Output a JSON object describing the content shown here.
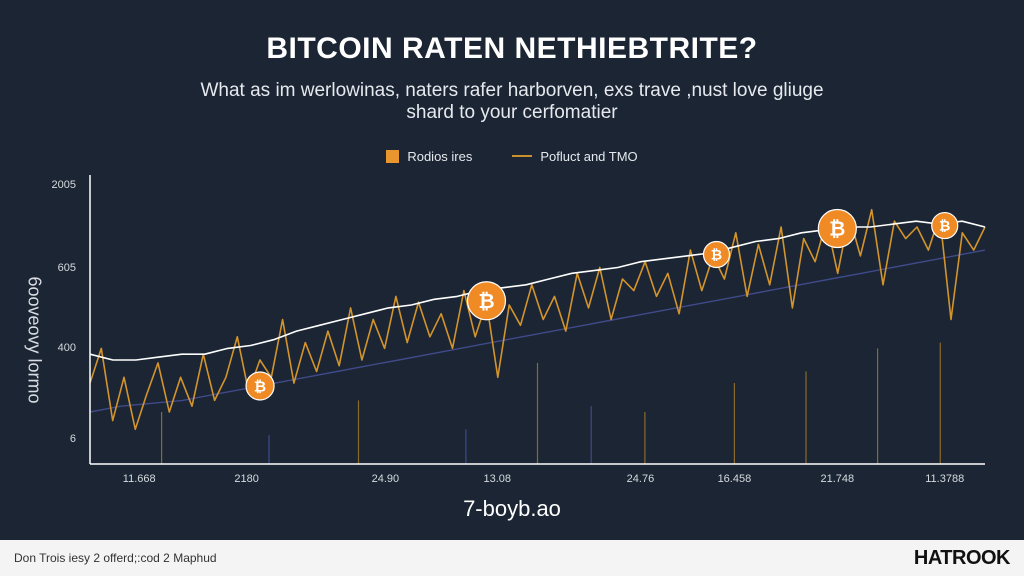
{
  "header": {
    "title": "BITCOIN RATEN NETHIEBTRITE?",
    "subtitle": "What as im werlowinas, naters rafer harborven, exs trave ,nust love gliuge shard to your cerfomatier"
  },
  "footer": {
    "note": "Don Trois iesy 2 offerd;:cod 2 Maphud",
    "brand": "HATROOK"
  },
  "colors": {
    "background": "#1b2533",
    "series_orange": "#d3942c",
    "series_white": "#ffffff",
    "series_blue": "#3f4a8a",
    "marker_orange": "#f08a24",
    "axis": "#ffffff"
  },
  "chart_data": {
    "type": "line",
    "ylabel": "6ooveovy lormo",
    "xlabel": "7-boyb.ao",
    "x_tick_labels": [
      "11.668",
      "2180",
      "24.90",
      "13.08",
      "24.76",
      "16.458",
      "21.748",
      "11.3788"
    ],
    "y_tick_labels": [
      "6",
      "400",
      "605",
      "2005"
    ],
    "y_tick_values": [
      0,
      400,
      605,
      2005
    ],
    "legend": [
      {
        "label": "Rodios ires",
        "style": "box",
        "color": "#e9962e"
      },
      {
        "label": "Pofluct and TMO",
        "style": "line",
        "color": "#c9902c"
      }
    ],
    "grid": false,
    "bitcoin_icon_glyph": "₿",
    "bitcoin_markers": [
      {
        "x": 0.19,
        "y": 0.27
      },
      {
        "x": 0.443,
        "y": 0.565
      },
      {
        "x": 0.7,
        "y": 0.725
      },
      {
        "x": 0.835,
        "y": 0.815
      },
      {
        "x": 0.955,
        "y": 0.825
      }
    ],
    "series": [
      {
        "key": "orange",
        "values": [
          0.28,
          0.4,
          0.15,
          0.3,
          0.12,
          0.24,
          0.35,
          0.18,
          0.3,
          0.2,
          0.38,
          0.22,
          0.3,
          0.44,
          0.25,
          0.36,
          0.3,
          0.5,
          0.28,
          0.42,
          0.32,
          0.46,
          0.34,
          0.54,
          0.36,
          0.5,
          0.4,
          0.58,
          0.42,
          0.56,
          0.44,
          0.52,
          0.4,
          0.6,
          0.44,
          0.56,
          0.3,
          0.55,
          0.48,
          0.62,
          0.5,
          0.58,
          0.46,
          0.66,
          0.54,
          0.68,
          0.5,
          0.64,
          0.6,
          0.7,
          0.58,
          0.66,
          0.52,
          0.74,
          0.6,
          0.72,
          0.64,
          0.8,
          0.58,
          0.76,
          0.62,
          0.82,
          0.54,
          0.78,
          0.7,
          0.84,
          0.66,
          0.86,
          0.72,
          0.88,
          0.62,
          0.84,
          0.78,
          0.82,
          0.74,
          0.86,
          0.5,
          0.8,
          0.74,
          0.82
        ]
      },
      {
        "key": "white",
        "values": [
          0.38,
          0.36,
          0.36,
          0.37,
          0.38,
          0.38,
          0.4,
          0.41,
          0.43,
          0.46,
          0.48,
          0.5,
          0.52,
          0.54,
          0.55,
          0.57,
          0.58,
          0.6,
          0.61,
          0.62,
          0.64,
          0.66,
          0.67,
          0.68,
          0.7,
          0.71,
          0.72,
          0.73,
          0.75,
          0.77,
          0.78,
          0.8,
          0.81,
          0.82,
          0.82,
          0.83,
          0.84,
          0.83,
          0.84,
          0.82
        ]
      },
      {
        "key": "blue",
        "values": [
          0.18,
          0.2,
          0.21,
          0.22,
          0.24,
          0.26,
          0.28,
          0.3,
          0.32,
          0.34,
          0.36,
          0.38,
          0.4,
          0.42,
          0.44,
          0.46,
          0.48,
          0.5,
          0.52,
          0.54,
          0.56,
          0.58,
          0.6,
          0.62,
          0.64,
          0.66,
          0.68,
          0.7,
          0.72,
          0.74
        ]
      }
    ]
  }
}
